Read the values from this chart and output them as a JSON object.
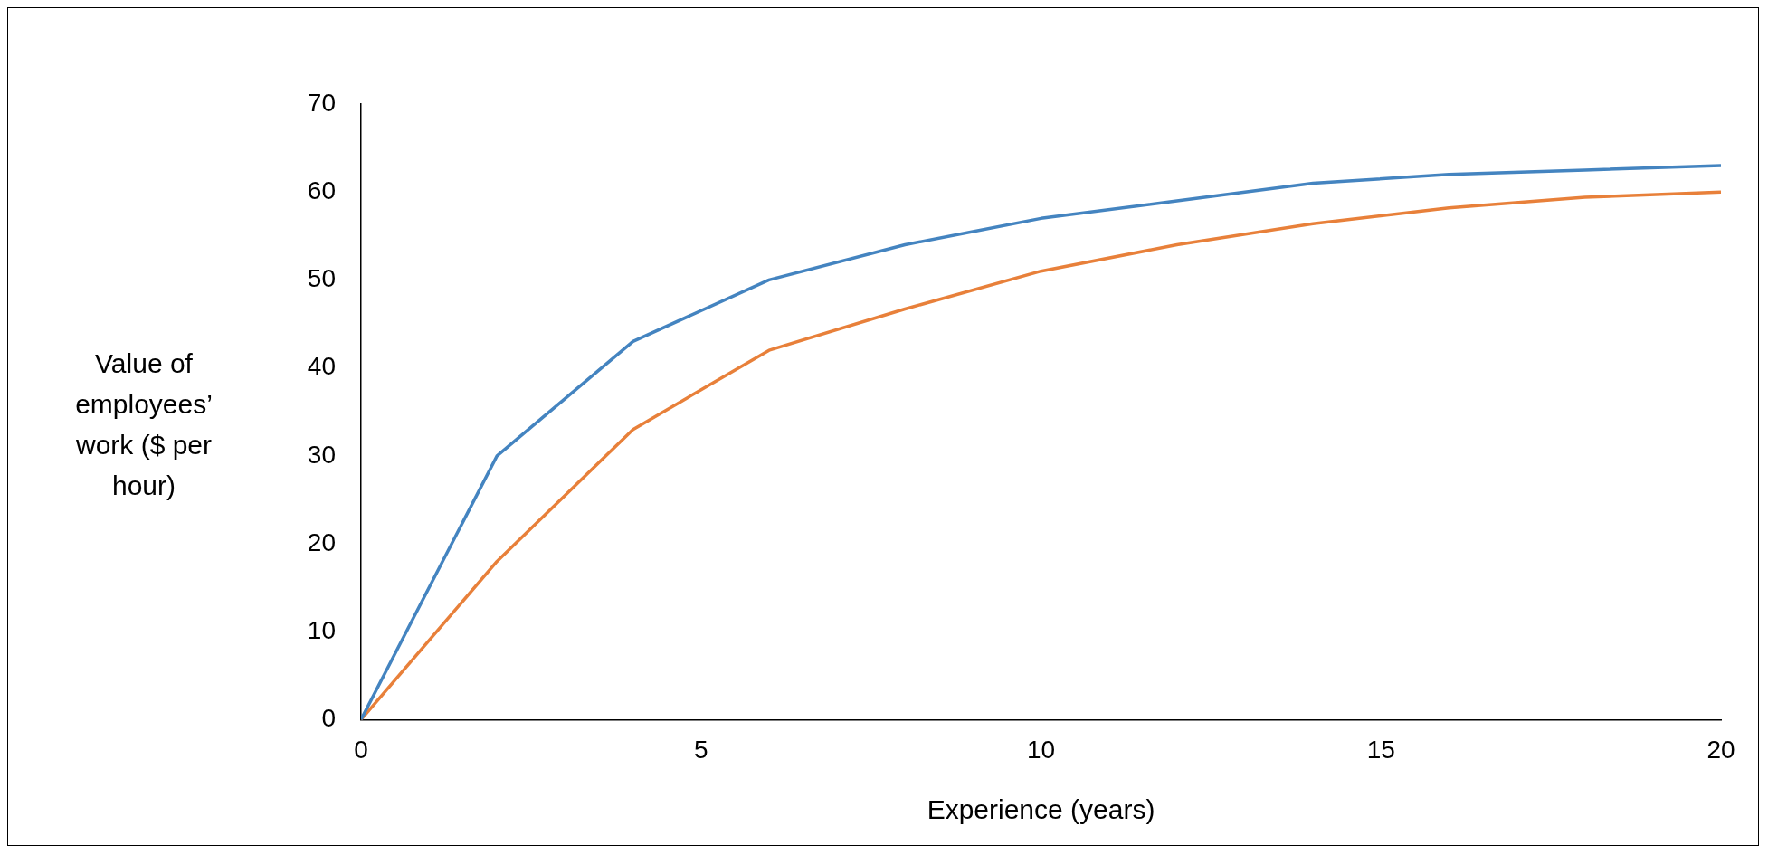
{
  "chart_data": {
    "type": "line",
    "xlabel": "Experience (years)",
    "ylabel": "Value of employees’ work ($ per hour)",
    "x": [
      0,
      2,
      4,
      6,
      8,
      10,
      12,
      14,
      16,
      18,
      20
    ],
    "series": [
      {
        "color": "#4484c0",
        "values": [
          0,
          30,
          43,
          50,
          54,
          57,
          59,
          61,
          62,
          62.5,
          63
        ]
      },
      {
        "color": "#e8803a",
        "values": [
          0,
          18,
          33,
          42,
          46.7,
          51,
          54,
          56.4,
          58.2,
          59.4,
          60
        ]
      }
    ],
    "xlim": [
      0,
      20
    ],
    "xticks": [
      0,
      5,
      10,
      15,
      20
    ],
    "ylim": [
      0,
      70
    ],
    "yticks": [
      0,
      10,
      20,
      30,
      40,
      50,
      60,
      70
    ],
    "grid": false,
    "legend": false,
    "marker": "none",
    "line_style": "solid"
  }
}
